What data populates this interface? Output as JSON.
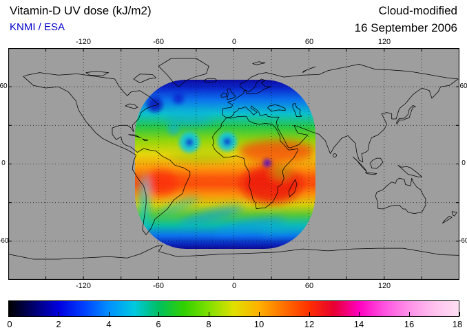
{
  "header": {
    "title": "Vitamin-D UV dose (kJ/m2)",
    "credit": "KNMI / ESA",
    "credit_color": "#0000cc",
    "mode": "Cloud-modified",
    "date": "16 September 2006"
  },
  "map": {
    "background": "#9e9e9e",
    "coastline_color": "#000000",
    "lon_labels": [
      "-120",
      "-60",
      "0",
      "60",
      "120"
    ],
    "lat_labels": [
      "60",
      "0",
      "-60"
    ]
  },
  "colorbar": {
    "unit": "kJ/m2",
    "min": 0,
    "max": 18,
    "tick_labels": [
      "0",
      "2",
      "4",
      "6",
      "8",
      "10",
      "12",
      "14",
      "16",
      "18"
    ],
    "stops": [
      {
        "v": 0,
        "c": "#000000"
      },
      {
        "v": 1,
        "c": "#000070"
      },
      {
        "v": 2,
        "c": "#0000e0"
      },
      {
        "v": 3,
        "c": "#0040ff"
      },
      {
        "v": 4,
        "c": "#0090ff"
      },
      {
        "v": 5,
        "c": "#00c8e0"
      },
      {
        "v": 6,
        "c": "#00c060"
      },
      {
        "v": 7,
        "c": "#30d000"
      },
      {
        "v": 8,
        "c": "#80e000"
      },
      {
        "v": 9,
        "c": "#e0e000"
      },
      {
        "v": 10,
        "c": "#ffb000"
      },
      {
        "v": 11,
        "c": "#ff7000"
      },
      {
        "v": 12,
        "c": "#ff3000"
      },
      {
        "v": 13,
        "c": "#e80030"
      },
      {
        "v": 14,
        "c": "#ff00c0"
      },
      {
        "v": 15,
        "c": "#ff50e0"
      },
      {
        "v": 16,
        "c": "#ff90e8"
      },
      {
        "v": 17,
        "c": "#ffc0ee"
      },
      {
        "v": 18,
        "c": "#ffdff2"
      }
    ]
  },
  "chart_data": {
    "type": "heatmap",
    "title": "Vitamin-D UV dose (kJ/m2)",
    "subtitle": "Cloud-modified",
    "date": "16 September 2006",
    "source": "KNMI / ESA",
    "projection": "equirectangular world map",
    "lon_range": [
      -180,
      180
    ],
    "lat_range": [
      -90,
      90
    ],
    "lon_ticks": [
      -120,
      -60,
      0,
      60,
      120
    ],
    "lat_ticks": [
      60,
      0,
      -60
    ],
    "grid": "dotted graticule every 30 degrees",
    "colorbar": {
      "min": 0,
      "max": 18,
      "tick_step": 2,
      "unit": "kJ/m2"
    },
    "data_extent": {
      "lon": [
        -79,
        65
      ],
      "lat": [
        -65,
        65
      ]
    },
    "pattern": "Satellite swath (rounded-rectangle region) over Atlantic/Africa/South America; maximum dose 12-16 kJ/m2 (red) over tropical Africa and inland South America; decreasing poleward through orange, yellow, green, cyan to dark blue (0-2) near 60N and 60S swath edges; blue/cyan cloud swirls (tropical cyclones) over the North Atlantic near 18N; blue frontal cloud bands over the Southern Ocean; gray = no data outside swath"
  }
}
